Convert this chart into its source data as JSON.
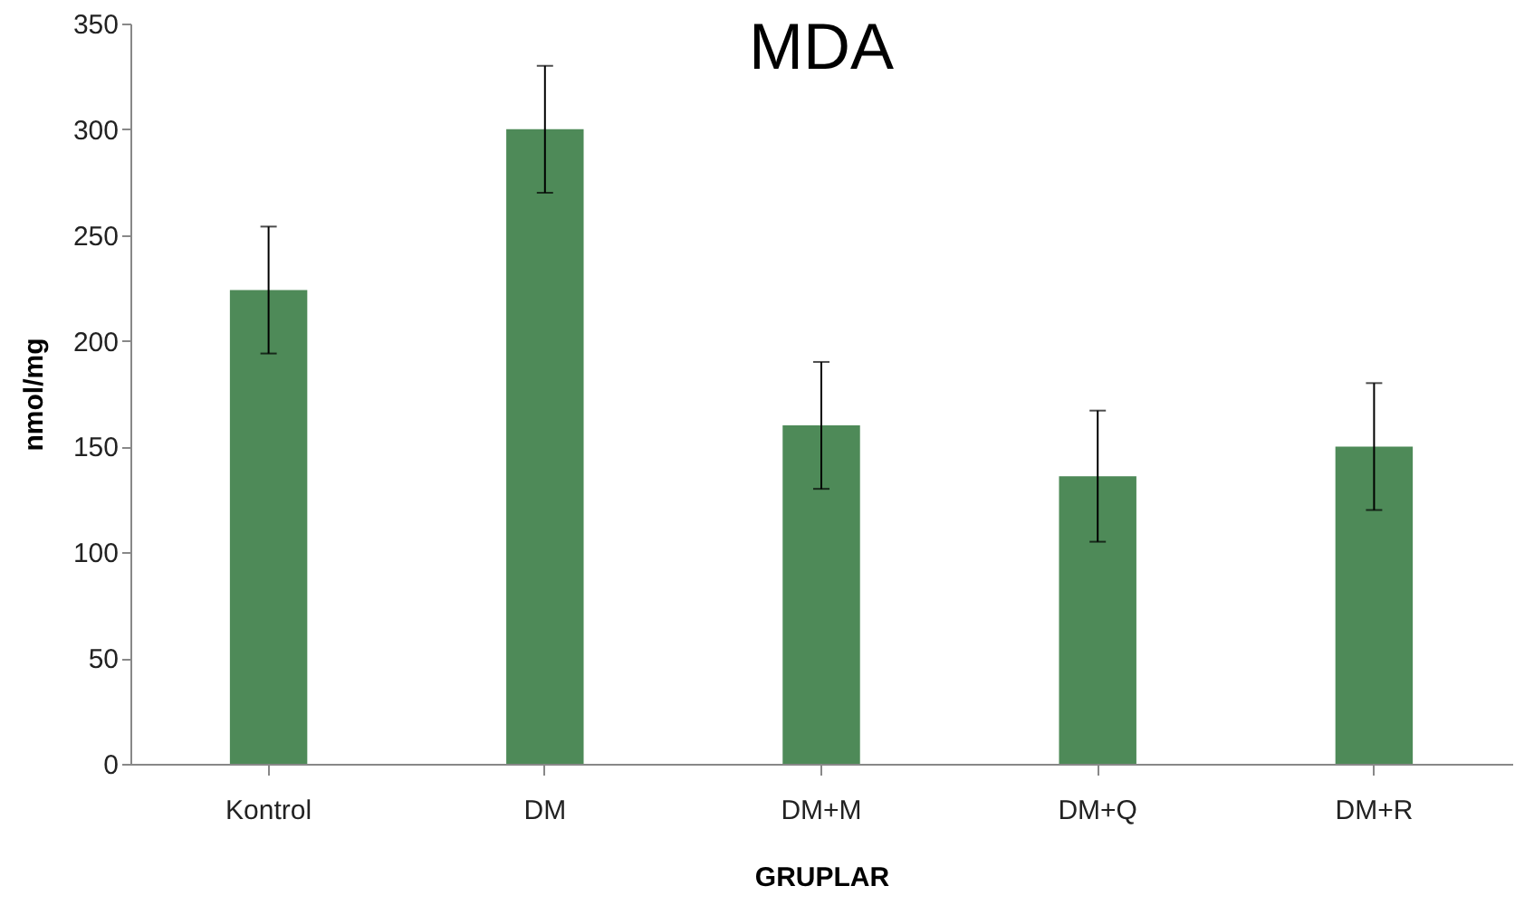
{
  "chart_data": {
    "type": "bar",
    "title": "MDA",
    "xlabel": "GRUPLAR",
    "ylabel": "nmol/mg",
    "categories": [
      "Kontrol",
      "DM",
      "DM+M",
      "DM+Q",
      "DM+R"
    ],
    "values": [
      224,
      300,
      160,
      136,
      150
    ],
    "errors": [
      30,
      30,
      30,
      31,
      30
    ],
    "color": "#4e8a58",
    "ylim": [
      0,
      350
    ],
    "yticks": [
      0,
      50,
      100,
      150,
      200,
      250,
      300,
      350
    ],
    "grid": false
  }
}
